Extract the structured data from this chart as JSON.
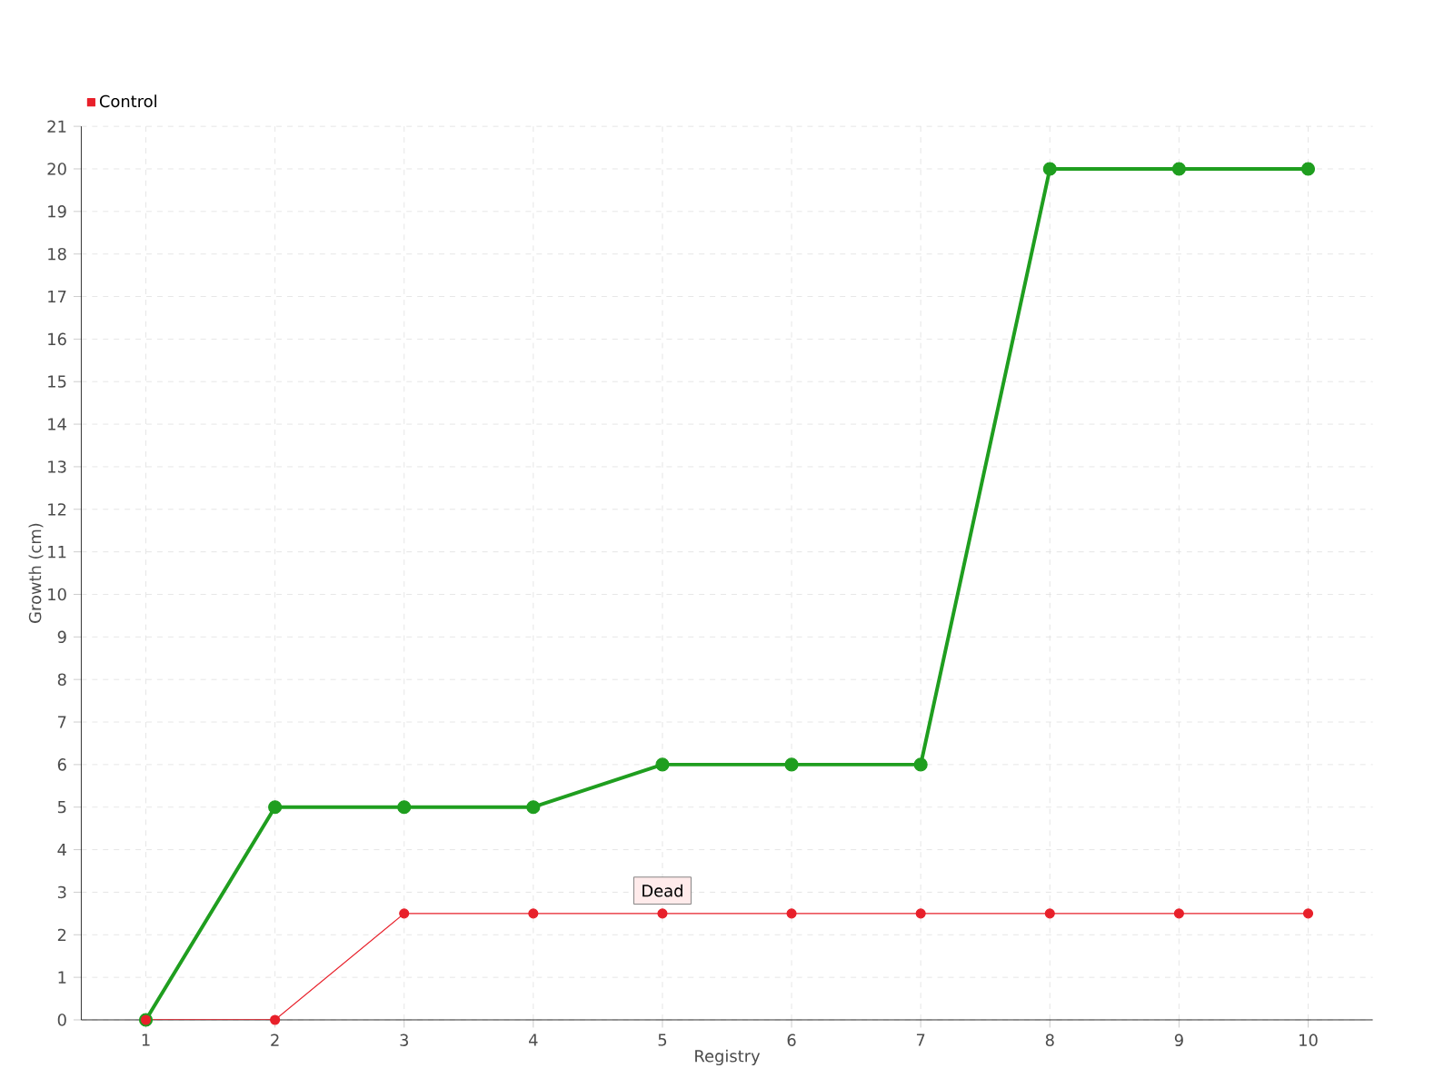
{
  "chart_data": {
    "type": "line",
    "xlabel": "Registry",
    "ylabel": "Growth (cm)",
    "categories": [
      "1",
      "2",
      "3",
      "4",
      "5",
      "6",
      "7",
      "8",
      "9",
      "10"
    ],
    "series": [
      {
        "color": "#1f9e1f",
        "values": [
          0,
          5,
          5,
          5,
          6,
          6,
          6,
          20,
          20,
          20
        ]
      },
      {
        "name": "Control",
        "color": "#e8202a",
        "values": [
          0,
          0,
          2.5,
          2.5,
          2.5,
          2.5,
          2.5,
          2.5,
          2.5,
          2.5
        ]
      }
    ],
    "ylim": [
      0,
      21
    ],
    "yticks": [
      0,
      1,
      2,
      3,
      4,
      5,
      6,
      7,
      8,
      9,
      10,
      11,
      12,
      13,
      14,
      15,
      16,
      17,
      18,
      19,
      20,
      21
    ],
    "grid": true,
    "legend": "top left",
    "marker": "circle",
    "annotations": [
      {
        "text": "Dead",
        "x": "5",
        "y": 2.5
      }
    ]
  }
}
